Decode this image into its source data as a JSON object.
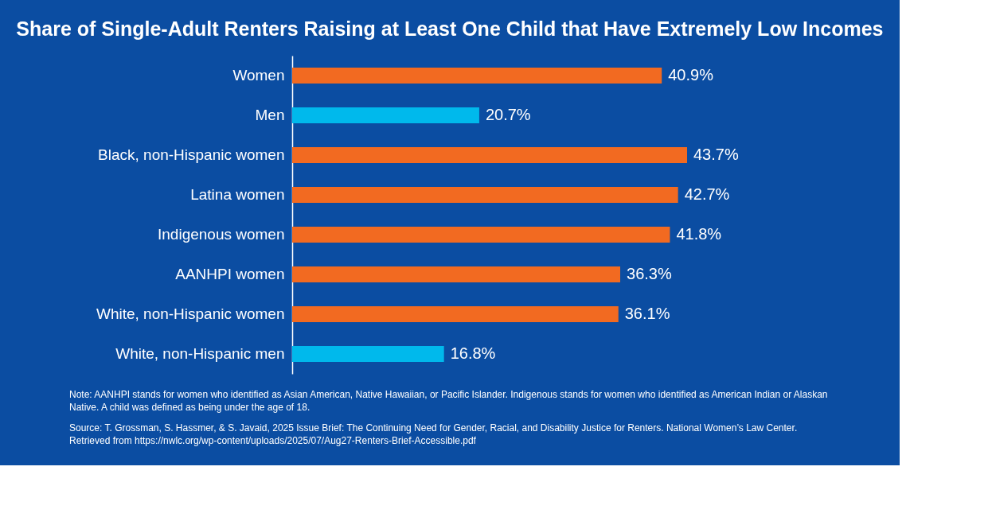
{
  "chart_data": {
    "type": "bar",
    "orientation": "horizontal",
    "title": "Share of Single-Adult Renters Raising at Least One Child that Have Extremely Low Incomes",
    "categories": [
      "Women",
      "Men",
      "Black, non-Hispanic women",
      "Latina women",
      "Indigenous women",
      "AANHPI women",
      "White, non-Hispanic women",
      "White, non-Hispanic men"
    ],
    "values": [
      40.9,
      20.7,
      43.7,
      42.7,
      41.8,
      36.3,
      36.1,
      16.8
    ],
    "colors": [
      "#f26a21",
      "#00b9ec",
      "#f26a21",
      "#f26a21",
      "#f26a21",
      "#f26a21",
      "#f26a21",
      "#00b9ec"
    ],
    "value_labels": [
      "40.9%",
      "20.7%",
      "43.7%",
      "42.7%",
      "41.8%",
      "36.3%",
      "36.1%",
      "16.8%"
    ],
    "annotations": [
      "Note: AANHPI stands for women who identified as Asian American, Native Hawaiian, or Pacific Islander. Indigenous stands for women who identified as American Indian or Alaskan Native. A child was defined as being under the age of 18.",
      "Source: T. Grossman, S. Hassmer, & S. Javaid, 2025 Issue Brief: The Continuing Need for Gender, Racial, and Disability Justice for Renters. National Women’s Law Center.  Retrieved from https://nwlc.org/wp-content/uploads/2025/07/Aug27-Renters-Brief-Accessible.pdf"
    ]
  }
}
